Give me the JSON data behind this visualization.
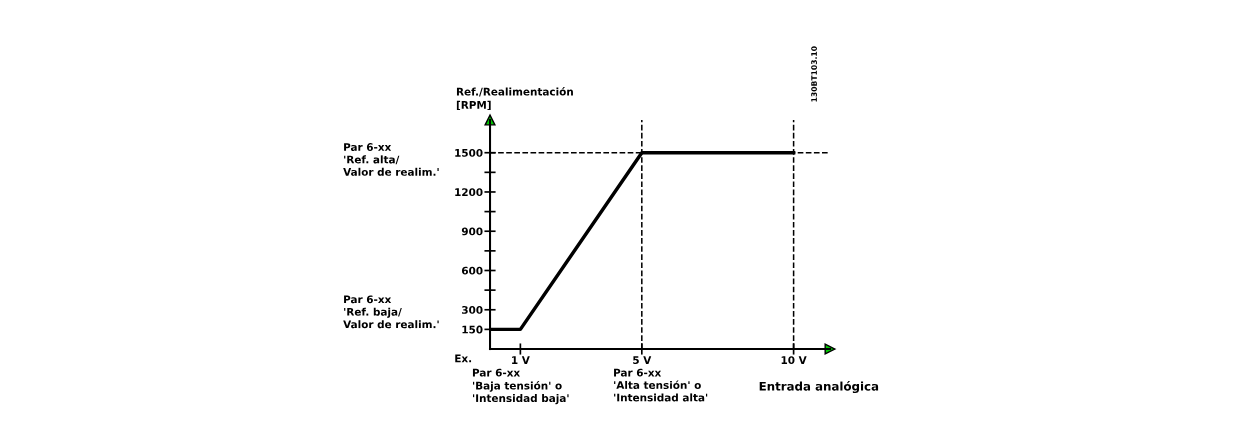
{
  "chart_data": {
    "type": "line",
    "x": [
      0,
      1,
      5,
      10
    ],
    "series": [
      {
        "color": "#000000",
        "values": [
          150,
          150,
          1500,
          1500
        ]
      }
    ],
    "xlabel": "Entrada analógica",
    "ylabel": "Ref./Realimentación\n[RPM]",
    "xlim": [
      0,
      11.2
    ],
    "ylim": [
      0,
      1750
    ],
    "xticks": [
      {
        "value": 1,
        "label": "1 V"
      },
      {
        "value": 5,
        "label": "5 V"
      },
      {
        "value": 10,
        "label": "10 V"
      }
    ],
    "yticks": [
      150,
      300,
      {
        "value": 450,
        "label": null
      },
      600,
      {
        "value": 750,
        "label": null
      },
      900,
      {
        "value": 1050,
        "label": null
      },
      1200,
      {
        "value": 1350,
        "label": null
      },
      1500
    ],
    "ref_lines": [
      {
        "axis": "y",
        "value": 1500,
        "line_style": "dashed",
        "color": "#000000"
      },
      {
        "axis": "x",
        "value": 5,
        "line_style": "dashed",
        "color": "#000000"
      },
      {
        "axis": "x",
        "value": 10,
        "line_style": "dashed",
        "color": "#000000"
      }
    ],
    "annotations": [
      "Par 6-xx\n'Ref. alta/\nValor de realim.'",
      "Par 6-xx\n'Ref. baja/\nValor de realim.'",
      "Par 6-xx\n'Baja tensión' o\n'Intensidad baja'",
      "Par 6-xx\n'Alta tensión' o\n'Intensidad alta'",
      "Ex.",
      "130BT103.10"
    ],
    "grid": false,
    "legend": false,
    "marker": "none",
    "line_style": "solid"
  }
}
